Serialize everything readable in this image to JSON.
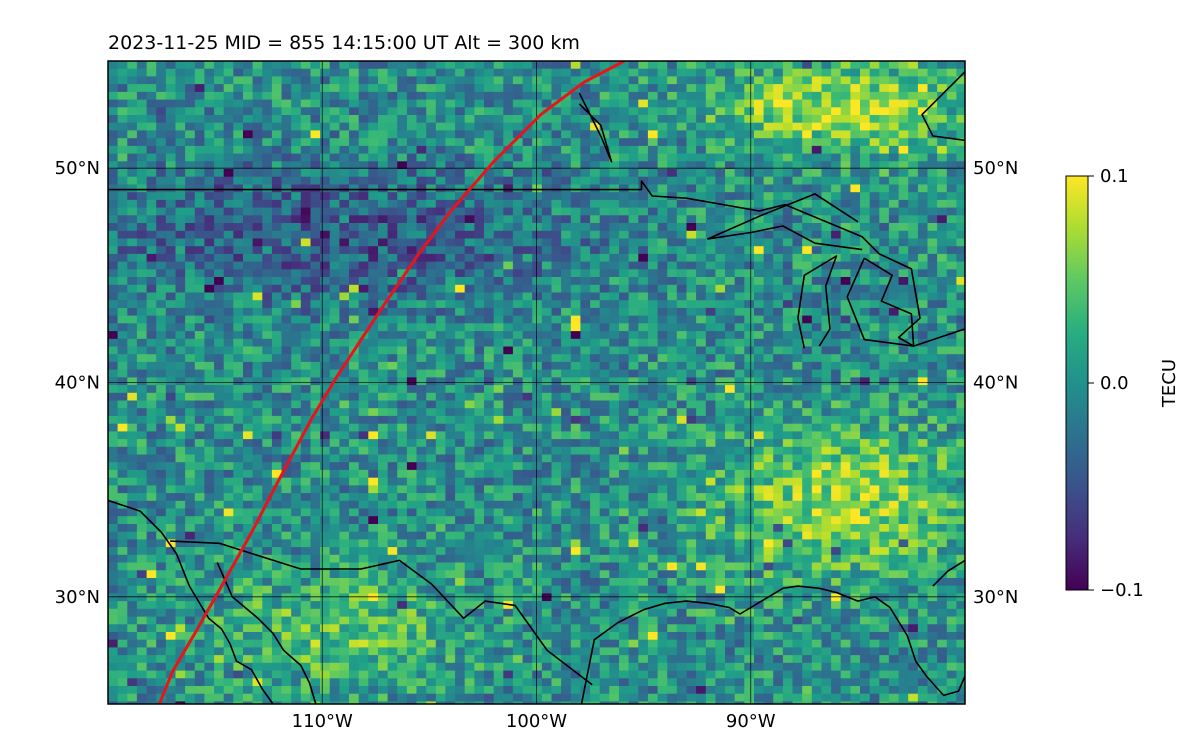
{
  "title": "2023-11-25  MID = 855    14:15:00  UT  Alt = 300 km",
  "map": {
    "lon_range": [
      -120,
      -80
    ],
    "lat_range": [
      25,
      55
    ],
    "lat_ticks": [
      {
        "lat": 50,
        "label": "50°N"
      },
      {
        "lat": 40,
        "label": "40°N"
      },
      {
        "lat": 30,
        "label": "30°N"
      }
    ],
    "lon_ticks": [
      {
        "lon": -110,
        "label": "110°W"
      },
      {
        "lon": -100,
        "label": "100°W"
      },
      {
        "lon": -90,
        "label": "90°W"
      }
    ],
    "gridlines": true,
    "path_color": "#e8141c",
    "path_lonlat": [
      [
        -117.6,
        25
      ],
      [
        -117.0,
        26.5
      ],
      [
        -116.0,
        28.2
      ],
      [
        -114.7,
        30.5
      ],
      [
        -113.3,
        33.0
      ],
      [
        -112.0,
        35.5
      ],
      [
        -110.5,
        38.3
      ],
      [
        -109.3,
        40.3
      ],
      [
        -107.2,
        43.5
      ],
      [
        -105.5,
        46.0
      ],
      [
        -104.0,
        48.0
      ],
      [
        -102.0,
        50.3
      ],
      [
        -99.8,
        52.5
      ],
      [
        -97.8,
        54.0
      ],
      [
        -95.9,
        55.0
      ]
    ],
    "coastlines": [
      [
        [
          -120,
          34.5
        ],
        [
          -118.5,
          34.0
        ],
        [
          -117.5,
          33.0
        ],
        [
          -116.8,
          32.0
        ],
        [
          -116.2,
          30.5
        ],
        [
          -115.3,
          29.0
        ],
        [
          -114.7,
          28.5
        ],
        [
          -114.3,
          27.8
        ],
        [
          -114.0,
          27.0
        ],
        [
          -113.3,
          26.6
        ],
        [
          -112.8,
          25.7
        ],
        [
          -112.3,
          25.0
        ]
      ],
      [
        [
          -114.9,
          31.6
        ],
        [
          -114.2,
          30.0
        ],
        [
          -113.0,
          29.0
        ],
        [
          -112.3,
          28.3
        ],
        [
          -111.8,
          27.5
        ],
        [
          -111.0,
          26.8
        ],
        [
          -110.6,
          26.0
        ],
        [
          -110.3,
          25.0
        ]
      ],
      [
        [
          -97.9,
          25
        ],
        [
          -97.6,
          26.5
        ],
        [
          -97.3,
          28.0
        ],
        [
          -96.2,
          28.8
        ],
        [
          -95.0,
          29.4
        ],
        [
          -94.0,
          29.7
        ],
        [
          -93.0,
          29.8
        ],
        [
          -92.0,
          29.7
        ],
        [
          -91.0,
          29.5
        ],
        [
          -90.5,
          29.2
        ],
        [
          -89.5,
          29.8
        ],
        [
          -88.5,
          30.4
        ],
        [
          -87.8,
          30.5
        ],
        [
          -86.8,
          30.4
        ],
        [
          -86.0,
          30.2
        ],
        [
          -85.0,
          29.8
        ],
        [
          -84.2,
          30.0
        ],
        [
          -83.5,
          29.5
        ],
        [
          -82.7,
          28.2
        ],
        [
          -82.3,
          27.0
        ],
        [
          -81.8,
          26.3
        ],
        [
          -81.0,
          25.4
        ],
        [
          -80.3,
          25.6
        ],
        [
          -80,
          26.3
        ]
      ],
      [
        [
          -80,
          31.7
        ],
        [
          -80.8,
          31.2
        ],
        [
          -81.5,
          30.5
        ]
      ]
    ],
    "borders": [
      [
        [
          -117.1,
          32.6
        ],
        [
          -114.8,
          32.5
        ],
        [
          -111.0,
          31.3
        ],
        [
          -108.2,
          31.3
        ],
        [
          -106.4,
          31.7
        ],
        [
          -104.9,
          30.6
        ],
        [
          -103.4,
          29.0
        ],
        [
          -102.4,
          29.8
        ],
        [
          -101.0,
          29.6
        ],
        [
          -99.5,
          27.5
        ],
        [
          -97.4,
          25.9
        ]
      ],
      [
        [
          -120,
          49.0
        ],
        [
          -95.1,
          49.0
        ],
        [
          -95.1,
          49.4
        ],
        [
          -94.6,
          48.7
        ],
        [
          -93.0,
          48.6
        ],
        [
          -89.6,
          48.0
        ],
        [
          -88.4,
          48.3
        ],
        [
          -84.8,
          46.8
        ],
        [
          -84.0,
          46.0
        ],
        [
          -82.5,
          45.3
        ],
        [
          -82.1,
          43.0
        ],
        [
          -83.1,
          42.1
        ],
        [
          -82.4,
          41.7
        ],
        [
          -80,
          42.5
        ]
      ],
      [
        [
          -84.8,
          46.2
        ],
        [
          -87.0,
          46.5
        ],
        [
          -88.5,
          47.3
        ],
        [
          -90.0,
          47.0
        ],
        [
          -92.0,
          46.7
        ],
        [
          -89.5,
          47.8
        ],
        [
          -87.0,
          48.8
        ],
        [
          -85.0,
          47.5
        ]
      ],
      [
        [
          -87.5,
          41.6
        ],
        [
          -87.8,
          43.0
        ],
        [
          -87.5,
          45.0
        ],
        [
          -86.0,
          45.9
        ],
        [
          -86.5,
          44.5
        ],
        [
          -86.3,
          42.5
        ],
        [
          -86.8,
          41.7
        ]
      ],
      [
        [
          -84.7,
          45.8
        ],
        [
          -83.4,
          45.0
        ],
        [
          -83.9,
          43.8
        ],
        [
          -82.5,
          43.2
        ],
        [
          -82.4,
          41.7
        ],
        [
          -84.7,
          42.0
        ],
        [
          -85.5,
          44.0
        ],
        [
          -84.7,
          45.8
        ]
      ],
      [
        [
          -80,
          54.5
        ],
        [
          -82.0,
          52.5
        ],
        [
          -81.5,
          51.5
        ],
        [
          -80,
          51.3
        ]
      ],
      [
        [
          -98.0,
          53.5
        ],
        [
          -97.0,
          51.5
        ],
        [
          -96.5,
          50.3
        ],
        [
          -97.0,
          52.0
        ],
        [
          -98.0,
          53.0
        ]
      ]
    ]
  },
  "colorbar": {
    "label": "TECU",
    "ticks": [
      {
        "value": 0.1,
        "label": "0.1"
      },
      {
        "value": 0.0,
        "label": "0.0"
      },
      {
        "value": -0.1,
        "label": "−0.1"
      }
    ],
    "range": [
      -0.1,
      0.1
    ],
    "colormap": "viridis"
  },
  "chart_data": {
    "type": "heatmap",
    "title": "2023-11-25  MID = 855    14:15:00  UT  Alt = 300 km",
    "xlabel": "",
    "ylabel": "",
    "x_range": [
      -120,
      -80
    ],
    "y_range": [
      25,
      55
    ],
    "value_label": "TECU",
    "value_range": [
      -0.1,
      0.1
    ],
    "x_ticks": [
      "110°W",
      "100°W",
      "90°W"
    ],
    "y_ticks": [
      "50°N",
      "40°N",
      "30°N"
    ],
    "regions": [
      {
        "name": "northern-plains-negative-band",
        "lon": [
          -120,
          -100
        ],
        "lat": [
          44,
          50
        ],
        "mean_tecu": -0.05
      },
      {
        "name": "southeast-positive-region",
        "lon": [
          -92,
          -80
        ],
        "lat": [
          31,
          38
        ],
        "mean_tecu": 0.07
      },
      {
        "name": "central-background",
        "lon": [
          -112,
          -94
        ],
        "lat": [
          34,
          43
        ],
        "mean_tecu": 0.0
      },
      {
        "name": "mexico-positive-patches",
        "lon": [
          -115,
          -104
        ],
        "lat": [
          26,
          31
        ],
        "mean_tecu": 0.05
      },
      {
        "name": "canada-positive-patches",
        "lon": [
          -92,
          -80
        ],
        "lat": [
          51,
          55
        ],
        "mean_tecu": 0.08
      }
    ]
  }
}
